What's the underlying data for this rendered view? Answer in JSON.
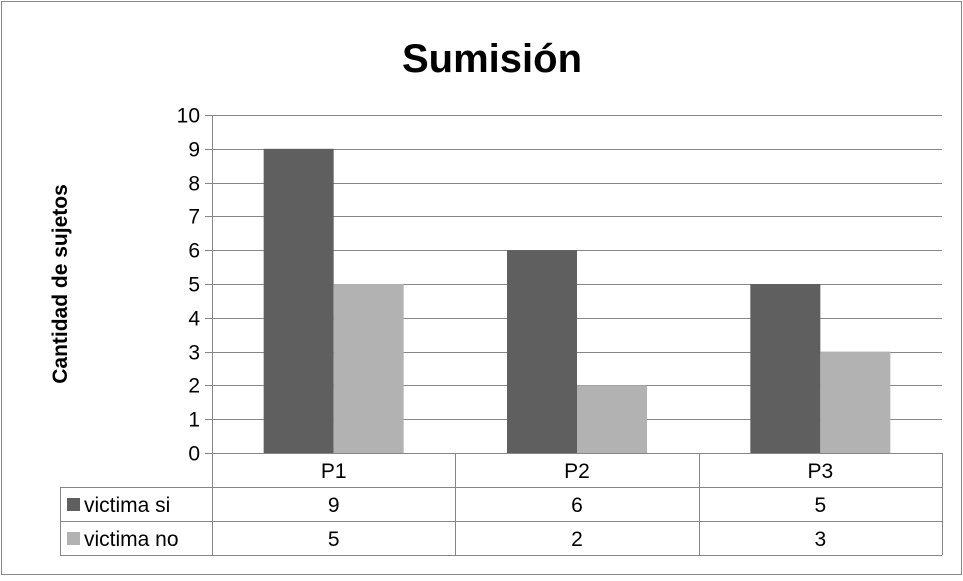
{
  "chart_data": {
    "type": "bar",
    "title": "Sumisión",
    "xlabel": "",
    "ylabel": "Cantidad de sujetos",
    "ylim": [
      0,
      10
    ],
    "yticks": [
      0,
      1,
      2,
      3,
      4,
      5,
      6,
      7,
      8,
      9,
      10
    ],
    "categories": [
      "P1",
      "P2",
      "P3"
    ],
    "series": [
      {
        "name": "victima si",
        "values": [
          9,
          6,
          5
        ],
        "color": "#5f5f5f"
      },
      {
        "name": "victima no",
        "values": [
          5,
          2,
          3
        ],
        "color": "#b2b2b2"
      }
    ],
    "grid": true,
    "legend": "data table below plot"
  }
}
